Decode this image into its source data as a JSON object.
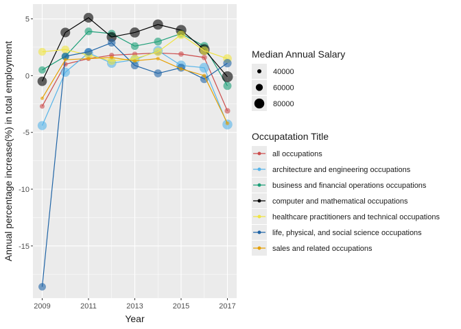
{
  "chart_data": {
    "type": "line",
    "xlabel": "Year",
    "ylabel": "Annual percentage increase(%) in total employment",
    "xlim": [
      2008.6,
      2017.4
    ],
    "ylim": [
      -19.6,
      6.3
    ],
    "x_ticks": [
      2009,
      2011,
      2013,
      2015,
      2017
    ],
    "y_ticks": [
      5,
      0,
      -5,
      -10,
      -15
    ],
    "grid": true,
    "x": [
      2009,
      2010,
      2011,
      2012,
      2013,
      2014,
      2015,
      2016,
      2017
    ],
    "series": [
      {
        "name": "all occupations",
        "color": "#cc4c4c",
        "values": [
          -2.7,
          1.0,
          1.5,
          1.8,
          1.9,
          2.0,
          1.9,
          1.6,
          -3.1
        ],
        "salaries": [
          45000,
          45000,
          45000,
          46000,
          46000,
          47000,
          48000,
          49000,
          50000
        ]
      },
      {
        "name": "architecture and engineering occupations",
        "color": "#56b4e9",
        "values": [
          -4.4,
          0.3,
          2.0,
          1.1,
          1.4,
          2.2,
          0.9,
          0.7,
          -4.3
        ],
        "salaries": [
          74000,
          75000,
          75000,
          76000,
          76000,
          77000,
          78000,
          79000,
          80000
        ]
      },
      {
        "name": "business and financial operations occupations",
        "color": "#1b9e77",
        "values": [
          0.5,
          1.7,
          3.9,
          3.7,
          2.6,
          3.0,
          3.7,
          2.6,
          -0.9
        ],
        "salaries": [
          62000,
          63000,
          64000,
          64000,
          65000,
          66000,
          67000,
          68000,
          68000
        ]
      },
      {
        "name": "computer and mathematical occupations",
        "color": "#000000",
        "values": [
          -0.5,
          3.8,
          5.1,
          3.4,
          3.8,
          4.5,
          4.0,
          2.3,
          -0.1
        ],
        "salaries": [
          76000,
          78000,
          79000,
          80000,
          81000,
          82000,
          84000,
          85000,
          87000
        ]
      },
      {
        "name": "healthcare practitioners and technical occupations",
        "color": "#f0e442",
        "values": [
          2.1,
          2.3,
          1.8,
          1.3,
          1.5,
          2.1,
          3.6,
          2.2,
          1.5
        ],
        "salaries": [
          65000,
          66000,
          66000,
          67000,
          68000,
          69000,
          70000,
          71000,
          72000
        ]
      },
      {
        "name": "life, physical, and social science occupations",
        "color": "#1f64a6",
        "values": [
          -18.6,
          1.7,
          2.1,
          2.9,
          0.9,
          0.2,
          0.7,
          -0.3,
          1.1
        ],
        "salaries": [
          63000,
          63000,
          64000,
          65000,
          65000,
          66000,
          67000,
          68000,
          69000
        ]
      },
      {
        "name": "sales and related occupations",
        "color": "#e69f00",
        "values": [
          -2.0,
          1.4,
          1.5,
          1.6,
          1.3,
          1.5,
          0.6,
          0.0,
          -4.2
        ],
        "salaries": [
          35000,
          35000,
          35000,
          36000,
          36000,
          37000,
          37000,
          38000,
          38000
        ]
      }
    ],
    "size_legend": {
      "title": "Median Annual Salary",
      "entries": [
        {
          "label": "40000",
          "value": 40000
        },
        {
          "label": "60000",
          "value": 60000
        },
        {
          "label": "80000",
          "value": 80000
        }
      ]
    },
    "color_legend_title": "Occupatation Title",
    "legend_position": "right",
    "panel_background": "#ebebeb",
    "grid_color": "#ffffff"
  }
}
